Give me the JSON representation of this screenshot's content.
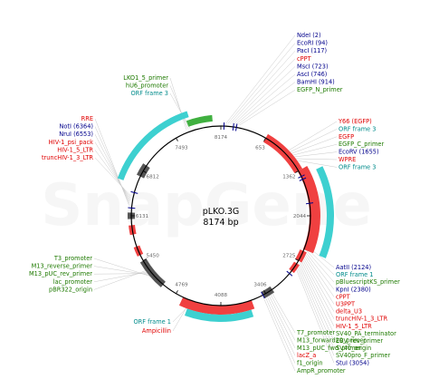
{
  "plasmid": {
    "name": "pLKO.3G",
    "size_label": "8174 bp",
    "watermark": "SnapGene"
  },
  "position_ticks": [
    "8174",
    "653",
    "1362",
    "2044",
    "2725",
    "3406",
    "4088",
    "4769",
    "5450",
    "6131",
    "6812",
    "7493"
  ],
  "colors": {
    "site": "#00008b",
    "feature_red": "#e00000",
    "feature_cyan": "#008b8b",
    "feature_green": "#1e7a00",
    "black": "#000000",
    "red_arrow": "#f04040",
    "cyan_arrow": "#3dd0d0",
    "green_arrow": "#40b040",
    "gray_block": "#555555"
  },
  "labels_top_right": [
    {
      "text": "NdeI (2)",
      "color": "site"
    },
    {
      "text": "EcoRI (94)",
      "color": "site"
    },
    {
      "text": "PacI (117)",
      "color": "site"
    },
    {
      "text": "cPPT",
      "color": "feature_red"
    },
    {
      "text": "MscI (723)",
      "color": "site"
    },
    {
      "text": "AscI (746)",
      "color": "site"
    },
    {
      "text": "BamHI (914)",
      "color": "site"
    },
    {
      "text": "EGFP_N_primer",
      "color": "feature_green"
    }
  ],
  "labels_right_upper": [
    {
      "text": "Y66 (EGFP)",
      "color": "feature_red"
    },
    {
      "text": "ORF frame 3",
      "color": "feature_cyan"
    },
    {
      "text": "EGFP",
      "color": "feature_red"
    },
    {
      "text": "EGFP_C_primer",
      "color": "feature_green"
    },
    {
      "text": "EcoRV (1655)",
      "color": "site"
    },
    {
      "text": "WPRE",
      "color": "feature_red"
    },
    {
      "text": "ORF frame 3",
      "color": "feature_cyan"
    }
  ],
  "labels_right_lower": [
    {
      "text": "AatII (2124)",
      "color": "site"
    },
    {
      "text": "ORF frame 1",
      "color": "feature_cyan"
    },
    {
      "text": "pBluescriptKS_primer",
      "color": "feature_green"
    },
    {
      "text": "KpnI (2380)",
      "color": "site"
    },
    {
      "text": "cPPT",
      "color": "feature_red"
    },
    {
      "text": "U3PPT",
      "color": "feature_red"
    },
    {
      "text": "delta_U3",
      "color": "feature_red"
    },
    {
      "text": "truncHIV-1_3_LTR",
      "color": "feature_red"
    },
    {
      "text": "HIV-1_5_LTR",
      "color": "feature_red"
    },
    {
      "text": "SV40_PA_terminator",
      "color": "feature_green"
    },
    {
      "text": "EBV_rev_primer",
      "color": "feature_green"
    },
    {
      "text": "SV40_origin",
      "color": "feature_green"
    },
    {
      "text": "SV40pro_F_primer",
      "color": "feature_green"
    },
    {
      "text": "StuI (3054)",
      "color": "site"
    }
  ],
  "labels_bottom": [
    {
      "text": "T7_promoter",
      "color": "feature_green"
    },
    {
      "text": "M13_forward20_primer",
      "color": "feature_green"
    },
    {
      "text": "M13_pUC_fwd_primer",
      "color": "feature_green"
    },
    {
      "text": "lacZ_a",
      "color": "feature_red"
    },
    {
      "text": "f1_origin",
      "color": "feature_green"
    },
    {
      "text": "AmpR_promoter",
      "color": "feature_green"
    }
  ],
  "labels_bottom_left": [
    {
      "text": "ORF frame 1",
      "color": "feature_cyan"
    },
    {
      "text": "Ampicillin",
      "color": "feature_red"
    }
  ],
  "labels_left_lower": [
    {
      "text": "T3_promoter",
      "color": "feature_green"
    },
    {
      "text": "M13_reverse_primer",
      "color": "feature_green"
    },
    {
      "text": "M13_pUC_rev_primer",
      "color": "feature_green"
    },
    {
      "text": "lac_promoter",
      "color": "feature_green"
    },
    {
      "text": "pBR322_origin",
      "color": "feature_green"
    }
  ],
  "labels_left_upper": [
    {
      "text": "RRE",
      "color": "feature_red"
    },
    {
      "text": "NotI (6364)",
      "color": "site"
    },
    {
      "text": "NruI (6553)",
      "color": "site"
    },
    {
      "text": "HIV-1_psi_pack",
      "color": "feature_red"
    },
    {
      "text": "HIV-1_5_LTR",
      "color": "feature_red"
    },
    {
      "text": "truncHIV-1_3_LTR",
      "color": "feature_red"
    }
  ],
  "labels_top_left": [
    {
      "text": "LKO1_5_primer",
      "color": "feature_green"
    },
    {
      "text": "hU6_promoter",
      "color": "feature_green"
    },
    {
      "text": "ORF frame 3",
      "color": "feature_cyan"
    }
  ]
}
